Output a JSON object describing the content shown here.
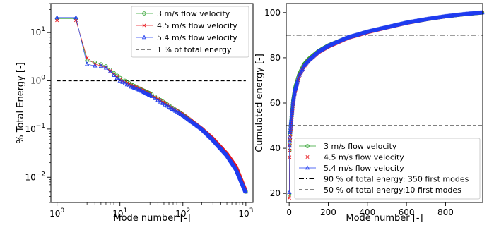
{
  "chart_data": [
    {
      "type": "line",
      "xlabel": "Mode number [-]",
      "ylabel": "% Total Energy [-]",
      "xscale": "log",
      "yscale": "log",
      "xlim": [
        0.8,
        1300
      ],
      "ylim": [
        0.003,
        40
      ],
      "x_tick_values": [
        1,
        10,
        100,
        1000
      ],
      "x_tick_labels": [
        {
          "base": "10",
          "exp": "0"
        },
        {
          "base": "10",
          "exp": "1"
        },
        {
          "base": "10",
          "exp": "2"
        },
        {
          "base": "10",
          "exp": "3"
        }
      ],
      "y_tick_values": [
        0.01,
        0.1,
        1,
        10
      ],
      "y_tick_labels": [
        {
          "base": "10",
          "exp": "−2"
        },
        {
          "base": "10",
          "exp": "−1"
        },
        {
          "base": "10",
          "exp": "0"
        },
        {
          "base": "10",
          "exp": "1"
        }
      ],
      "grid": false,
      "legend_position": "top-right",
      "series": [
        {
          "name": "3 m/s flow velocity",
          "color": "#2ca02c",
          "marker": "circle",
          "x": [
            1,
            2,
            3,
            4,
            5,
            6,
            7,
            8,
            10,
            15,
            20,
            30,
            50,
            100,
            200,
            300,
            500,
            700,
            1000
          ],
          "values": [
            19.5,
            19.5,
            2.6,
            2.4,
            2.2,
            2.0,
            1.7,
            1.45,
            1.15,
            0.85,
            0.7,
            0.55,
            0.36,
            0.2,
            0.1,
            0.062,
            0.03,
            0.016,
            0.005
          ]
        },
        {
          "name": "4.5 m/s flow velocity",
          "color": "#e8151b",
          "marker": "x",
          "x": [
            1,
            2,
            3,
            4,
            5,
            6,
            7,
            8,
            10,
            15,
            20,
            30,
            50,
            100,
            200,
            300,
            500,
            700,
            1000
          ],
          "values": [
            18.0,
            18.0,
            3.0,
            2.2,
            2.05,
            1.9,
            1.6,
            1.35,
            1.05,
            0.8,
            0.7,
            0.52,
            0.35,
            0.2,
            0.1,
            0.062,
            0.03,
            0.016,
            0.005
          ]
        },
        {
          "name": "5.4 m/s flow velocity",
          "color": "#1f3cf0",
          "marker": "triangle",
          "x": [
            1,
            2,
            3,
            4,
            5,
            6,
            7,
            8,
            10,
            15,
            20,
            30,
            50,
            100,
            200,
            300,
            500,
            700,
            1000
          ],
          "values": [
            20.5,
            20.5,
            2.2,
            2.05,
            2.0,
            1.85,
            1.55,
            1.3,
            1.0,
            0.75,
            0.65,
            0.5,
            0.33,
            0.19,
            0.1,
            0.06,
            0.029,
            0.015,
            0.005
          ]
        }
      ],
      "reference_lines": [
        {
          "name": "1 % of total energy",
          "orientation": "horizontal",
          "value": 1,
          "x_range": [
            1,
            1000
          ],
          "style": "dashed",
          "color": "#000000"
        }
      ]
    },
    {
      "type": "line",
      "xlabel": "Mode number [-]",
      "ylabel": "Cumulated energy [-]",
      "xlim": [
        -15,
        990
      ],
      "ylim": [
        16,
        104
      ],
      "x_ticks": [
        0,
        200,
        400,
        600,
        800
      ],
      "y_ticks": [
        20,
        40,
        60,
        80,
        100
      ],
      "grid": false,
      "legend_position": "lower-right",
      "series": [
        {
          "name": "3 m/s flow velocity",
          "color": "#2ca02c",
          "marker": "circle",
          "x": [
            1,
            2,
            3,
            5,
            10,
            20,
            30,
            50,
            75,
            100,
            150,
            200,
            300,
            350,
            400,
            500,
            600,
            700,
            800,
            900,
            990
          ],
          "values": [
            19.5,
            39,
            41.6,
            46,
            52,
            61,
            66.5,
            72.5,
            77,
            79.5,
            83,
            85.5,
            89,
            90.2,
            91.5,
            93.5,
            95.5,
            97,
            98.3,
            99.3,
            100
          ]
        },
        {
          "name": "4.5 m/s flow velocity",
          "color": "#e8151b",
          "marker": "x",
          "x": [
            1,
            2,
            3,
            5,
            10,
            20,
            30,
            50,
            75,
            100,
            150,
            200,
            300,
            350,
            400,
            500,
            600,
            700,
            800,
            900,
            990
          ],
          "values": [
            18,
            36,
            39,
            43.5,
            50,
            59.5,
            65,
            71.5,
            76,
            78.8,
            82.5,
            85,
            88.8,
            90,
            91.3,
            93.4,
            95.4,
            97,
            98.3,
            99.3,
            100
          ]
        },
        {
          "name": "5.4 m/s flow velocity",
          "color": "#1f3cf0",
          "marker": "triangle",
          "x": [
            1,
            2,
            3,
            5,
            10,
            20,
            30,
            50,
            75,
            100,
            150,
            200,
            300,
            350,
            400,
            500,
            600,
            700,
            800,
            900,
            990
          ],
          "values": [
            20.5,
            41,
            43,
            47,
            52,
            60.5,
            66,
            72,
            76.5,
            79,
            82.8,
            85.3,
            89,
            90.2,
            91.5,
            93.5,
            95.5,
            97,
            98.3,
            99.3,
            100
          ]
        }
      ],
      "reference_lines": [
        {
          "name": "90 % of total energy: 350 first modes",
          "orientation": "horizontal",
          "value": 90,
          "style": "dashdot",
          "color": "#000000"
        },
        {
          "name": "50 % of total energy:10 first modes",
          "orientation": "horizontal",
          "value": 50,
          "style": "dashed",
          "color": "#000000"
        }
      ]
    }
  ]
}
